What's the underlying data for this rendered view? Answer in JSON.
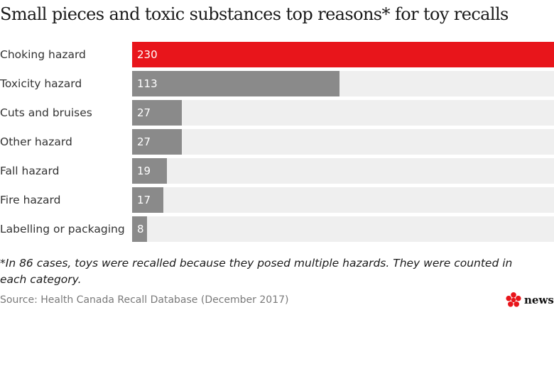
{
  "title": "Small pieces and toxic substances top reasons* for toy recalls",
  "chart_data": {
    "type": "bar",
    "orientation": "horizontal",
    "categories": [
      "Choking hazard",
      "Toxicity hazard",
      "Cuts and bruises",
      "Other hazard",
      "Fall hazard",
      "Fire hazard",
      "Labelling or packaging"
    ],
    "values": [
      230,
      113,
      27,
      27,
      19,
      17,
      8
    ],
    "xlim": [
      0,
      230
    ],
    "grid": false,
    "highlight_color": "#e8151b",
    "bar_color": "#8a8a8a",
    "track_color": "#efefef"
  },
  "footnote": "*In 86 cases, toys were recalled because they posed multiple hazards. They were counted in each category.",
  "source": "Source: Health Canada Recall Database (December 2017)",
  "logo": {
    "icon": "cbc-gem-icon",
    "text": "news",
    "color": "#e8151b"
  }
}
